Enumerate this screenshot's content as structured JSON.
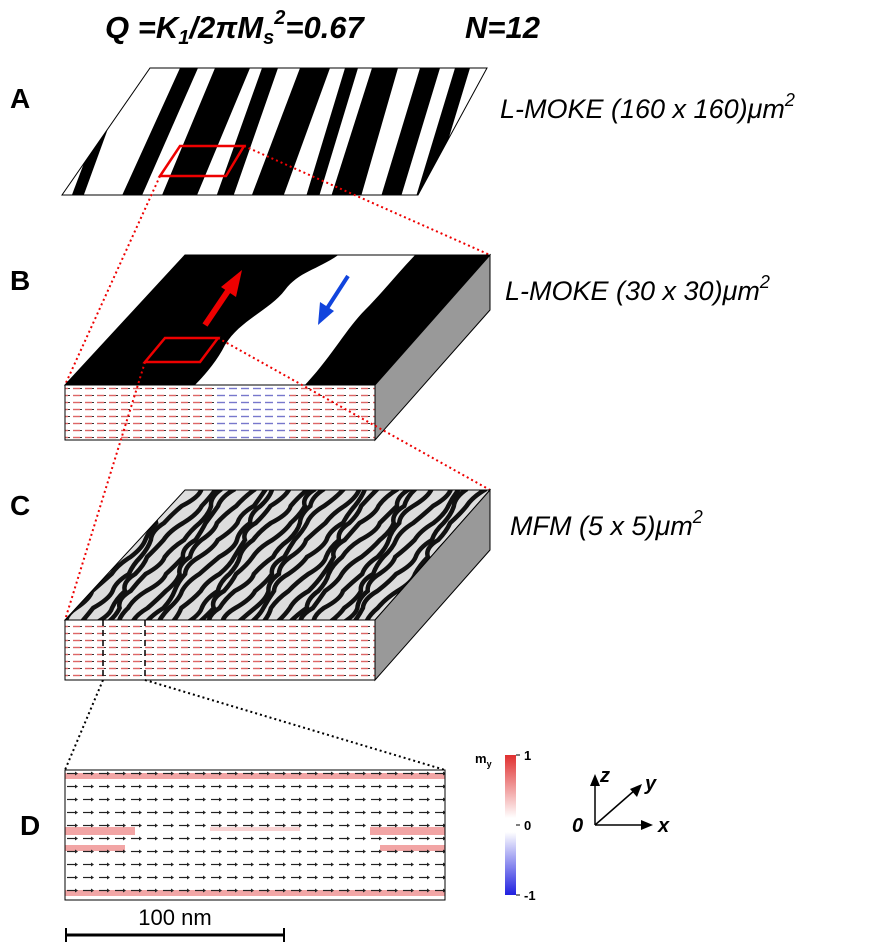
{
  "title": {
    "q_parts": [
      "Q =K",
      "1",
      "/2πM",
      "s",
      "2",
      "=0.67"
    ],
    "n": "N=12"
  },
  "panels": [
    {
      "label": "A",
      "caption": "L-MOKE (160 x 160)μm",
      "caption_sup": "2"
    },
    {
      "label": "B",
      "caption": "L-MOKE (30 x 30)μm",
      "caption_sup": "2"
    },
    {
      "label": "C",
      "caption": "MFM (5 x 5)μm",
      "caption_sup": "2"
    },
    {
      "label": "D"
    }
  ],
  "colorbar": {
    "label": "m",
    "label_sub": "y",
    "ticks": [
      1,
      0,
      -1
    ]
  },
  "axes": {
    "z": "z",
    "y": "y",
    "x": "x",
    "origin": "0"
  },
  "scale_bar": "100 nm"
}
